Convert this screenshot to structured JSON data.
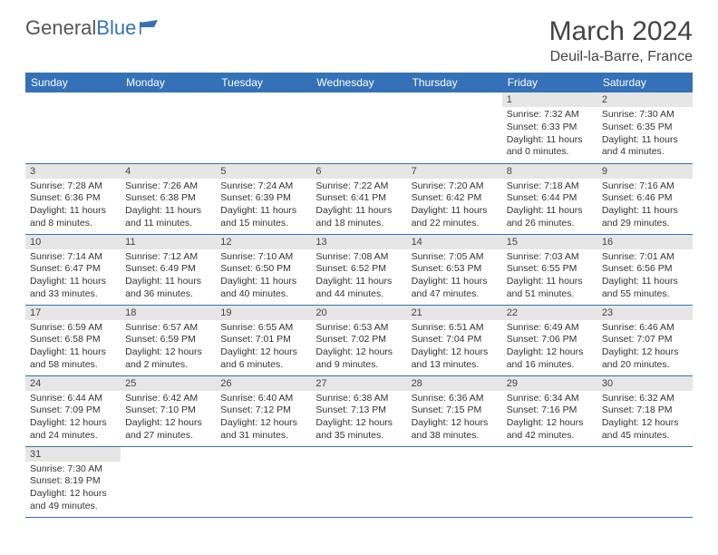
{
  "logo": {
    "text1": "General",
    "text2": "Blue"
  },
  "title": "March 2024",
  "location": "Deuil-la-Barre, France",
  "colors": {
    "header_bg": "#3571b8",
    "header_fg": "#ffffff",
    "daynum_bg": "#e6e6e6",
    "border": "#3571b8"
  },
  "day_headers": [
    "Sunday",
    "Monday",
    "Tuesday",
    "Wednesday",
    "Thursday",
    "Friday",
    "Saturday"
  ],
  "weeks": [
    [
      null,
      null,
      null,
      null,
      null,
      {
        "n": "1",
        "sr": "Sunrise: 7:32 AM",
        "ss": "Sunset: 6:33 PM",
        "d1": "Daylight: 11 hours",
        "d2": "and 0 minutes."
      },
      {
        "n": "2",
        "sr": "Sunrise: 7:30 AM",
        "ss": "Sunset: 6:35 PM",
        "d1": "Daylight: 11 hours",
        "d2": "and 4 minutes."
      }
    ],
    [
      {
        "n": "3",
        "sr": "Sunrise: 7:28 AM",
        "ss": "Sunset: 6:36 PM",
        "d1": "Daylight: 11 hours",
        "d2": "and 8 minutes."
      },
      {
        "n": "4",
        "sr": "Sunrise: 7:26 AM",
        "ss": "Sunset: 6:38 PM",
        "d1": "Daylight: 11 hours",
        "d2": "and 11 minutes."
      },
      {
        "n": "5",
        "sr": "Sunrise: 7:24 AM",
        "ss": "Sunset: 6:39 PM",
        "d1": "Daylight: 11 hours",
        "d2": "and 15 minutes."
      },
      {
        "n": "6",
        "sr": "Sunrise: 7:22 AM",
        "ss": "Sunset: 6:41 PM",
        "d1": "Daylight: 11 hours",
        "d2": "and 18 minutes."
      },
      {
        "n": "7",
        "sr": "Sunrise: 7:20 AM",
        "ss": "Sunset: 6:42 PM",
        "d1": "Daylight: 11 hours",
        "d2": "and 22 minutes."
      },
      {
        "n": "8",
        "sr": "Sunrise: 7:18 AM",
        "ss": "Sunset: 6:44 PM",
        "d1": "Daylight: 11 hours",
        "d2": "and 26 minutes."
      },
      {
        "n": "9",
        "sr": "Sunrise: 7:16 AM",
        "ss": "Sunset: 6:46 PM",
        "d1": "Daylight: 11 hours",
        "d2": "and 29 minutes."
      }
    ],
    [
      {
        "n": "10",
        "sr": "Sunrise: 7:14 AM",
        "ss": "Sunset: 6:47 PM",
        "d1": "Daylight: 11 hours",
        "d2": "and 33 minutes."
      },
      {
        "n": "11",
        "sr": "Sunrise: 7:12 AM",
        "ss": "Sunset: 6:49 PM",
        "d1": "Daylight: 11 hours",
        "d2": "and 36 minutes."
      },
      {
        "n": "12",
        "sr": "Sunrise: 7:10 AM",
        "ss": "Sunset: 6:50 PM",
        "d1": "Daylight: 11 hours",
        "d2": "and 40 minutes."
      },
      {
        "n": "13",
        "sr": "Sunrise: 7:08 AM",
        "ss": "Sunset: 6:52 PM",
        "d1": "Daylight: 11 hours",
        "d2": "and 44 minutes."
      },
      {
        "n": "14",
        "sr": "Sunrise: 7:05 AM",
        "ss": "Sunset: 6:53 PM",
        "d1": "Daylight: 11 hours",
        "d2": "and 47 minutes."
      },
      {
        "n": "15",
        "sr": "Sunrise: 7:03 AM",
        "ss": "Sunset: 6:55 PM",
        "d1": "Daylight: 11 hours",
        "d2": "and 51 minutes."
      },
      {
        "n": "16",
        "sr": "Sunrise: 7:01 AM",
        "ss": "Sunset: 6:56 PM",
        "d1": "Daylight: 11 hours",
        "d2": "and 55 minutes."
      }
    ],
    [
      {
        "n": "17",
        "sr": "Sunrise: 6:59 AM",
        "ss": "Sunset: 6:58 PM",
        "d1": "Daylight: 11 hours",
        "d2": "and 58 minutes."
      },
      {
        "n": "18",
        "sr": "Sunrise: 6:57 AM",
        "ss": "Sunset: 6:59 PM",
        "d1": "Daylight: 12 hours",
        "d2": "and 2 minutes."
      },
      {
        "n": "19",
        "sr": "Sunrise: 6:55 AM",
        "ss": "Sunset: 7:01 PM",
        "d1": "Daylight: 12 hours",
        "d2": "and 6 minutes."
      },
      {
        "n": "20",
        "sr": "Sunrise: 6:53 AM",
        "ss": "Sunset: 7:02 PM",
        "d1": "Daylight: 12 hours",
        "d2": "and 9 minutes."
      },
      {
        "n": "21",
        "sr": "Sunrise: 6:51 AM",
        "ss": "Sunset: 7:04 PM",
        "d1": "Daylight: 12 hours",
        "d2": "and 13 minutes."
      },
      {
        "n": "22",
        "sr": "Sunrise: 6:49 AM",
        "ss": "Sunset: 7:06 PM",
        "d1": "Daylight: 12 hours",
        "d2": "and 16 minutes."
      },
      {
        "n": "23",
        "sr": "Sunrise: 6:46 AM",
        "ss": "Sunset: 7:07 PM",
        "d1": "Daylight: 12 hours",
        "d2": "and 20 minutes."
      }
    ],
    [
      {
        "n": "24",
        "sr": "Sunrise: 6:44 AM",
        "ss": "Sunset: 7:09 PM",
        "d1": "Daylight: 12 hours",
        "d2": "and 24 minutes."
      },
      {
        "n": "25",
        "sr": "Sunrise: 6:42 AM",
        "ss": "Sunset: 7:10 PM",
        "d1": "Daylight: 12 hours",
        "d2": "and 27 minutes."
      },
      {
        "n": "26",
        "sr": "Sunrise: 6:40 AM",
        "ss": "Sunset: 7:12 PM",
        "d1": "Daylight: 12 hours",
        "d2": "and 31 minutes."
      },
      {
        "n": "27",
        "sr": "Sunrise: 6:38 AM",
        "ss": "Sunset: 7:13 PM",
        "d1": "Daylight: 12 hours",
        "d2": "and 35 minutes."
      },
      {
        "n": "28",
        "sr": "Sunrise: 6:36 AM",
        "ss": "Sunset: 7:15 PM",
        "d1": "Daylight: 12 hours",
        "d2": "and 38 minutes."
      },
      {
        "n": "29",
        "sr": "Sunrise: 6:34 AM",
        "ss": "Sunset: 7:16 PM",
        "d1": "Daylight: 12 hours",
        "d2": "and 42 minutes."
      },
      {
        "n": "30",
        "sr": "Sunrise: 6:32 AM",
        "ss": "Sunset: 7:18 PM",
        "d1": "Daylight: 12 hours",
        "d2": "and 45 minutes."
      }
    ],
    [
      {
        "n": "31",
        "sr": "Sunrise: 7:30 AM",
        "ss": "Sunset: 8:19 PM",
        "d1": "Daylight: 12 hours",
        "d2": "and 49 minutes."
      },
      null,
      null,
      null,
      null,
      null,
      null
    ]
  ]
}
